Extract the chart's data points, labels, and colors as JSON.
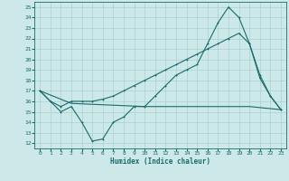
{
  "xlabel": "Humidex (Indice chaleur)",
  "bg_color": "#cce8e8",
  "grid_color": "#aad0d0",
  "line_color": "#1a6b6b",
  "xlim": [
    -0.5,
    23.5
  ],
  "ylim": [
    11.5,
    25.5
  ],
  "yticks": [
    12,
    13,
    14,
    15,
    16,
    17,
    18,
    19,
    20,
    21,
    22,
    23,
    24,
    25
  ],
  "xticks": [
    0,
    1,
    2,
    3,
    4,
    5,
    6,
    7,
    8,
    9,
    10,
    11,
    12,
    13,
    14,
    15,
    16,
    17,
    18,
    19,
    20,
    21,
    22,
    23
  ],
  "line1_x": [
    0,
    1,
    2,
    3,
    4,
    5,
    6,
    7,
    8,
    9,
    10,
    11,
    12,
    13,
    14,
    15,
    16,
    17,
    18,
    19,
    20,
    21,
    22,
    23
  ],
  "line1_y": [
    17,
    16,
    15,
    15.5,
    14,
    12.2,
    12.4,
    14,
    14.5,
    15.5,
    15.5,
    16.5,
    17.5,
    18.5,
    19,
    19.5,
    21.5,
    23.5,
    25,
    24,
    21.5,
    18.5,
    16.5,
    15.2
  ],
  "line2_x": [
    0,
    1,
    2,
    3,
    4,
    5,
    6,
    7,
    8,
    9,
    10,
    11,
    12,
    13,
    14,
    15,
    16,
    17,
    18,
    19,
    20,
    21,
    22,
    23
  ],
  "line2_y": [
    17,
    16,
    15.5,
    16,
    16,
    16,
    16.2,
    16.5,
    17,
    17.5,
    18,
    18.5,
    19,
    19.5,
    20,
    20.5,
    21,
    21.5,
    22,
    22.5,
    21.5,
    18.2,
    16.5,
    15.2
  ],
  "line3_x": [
    0,
    3,
    10,
    20,
    23
  ],
  "line3_y": [
    17,
    15.8,
    15.5,
    15.5,
    15.2
  ]
}
